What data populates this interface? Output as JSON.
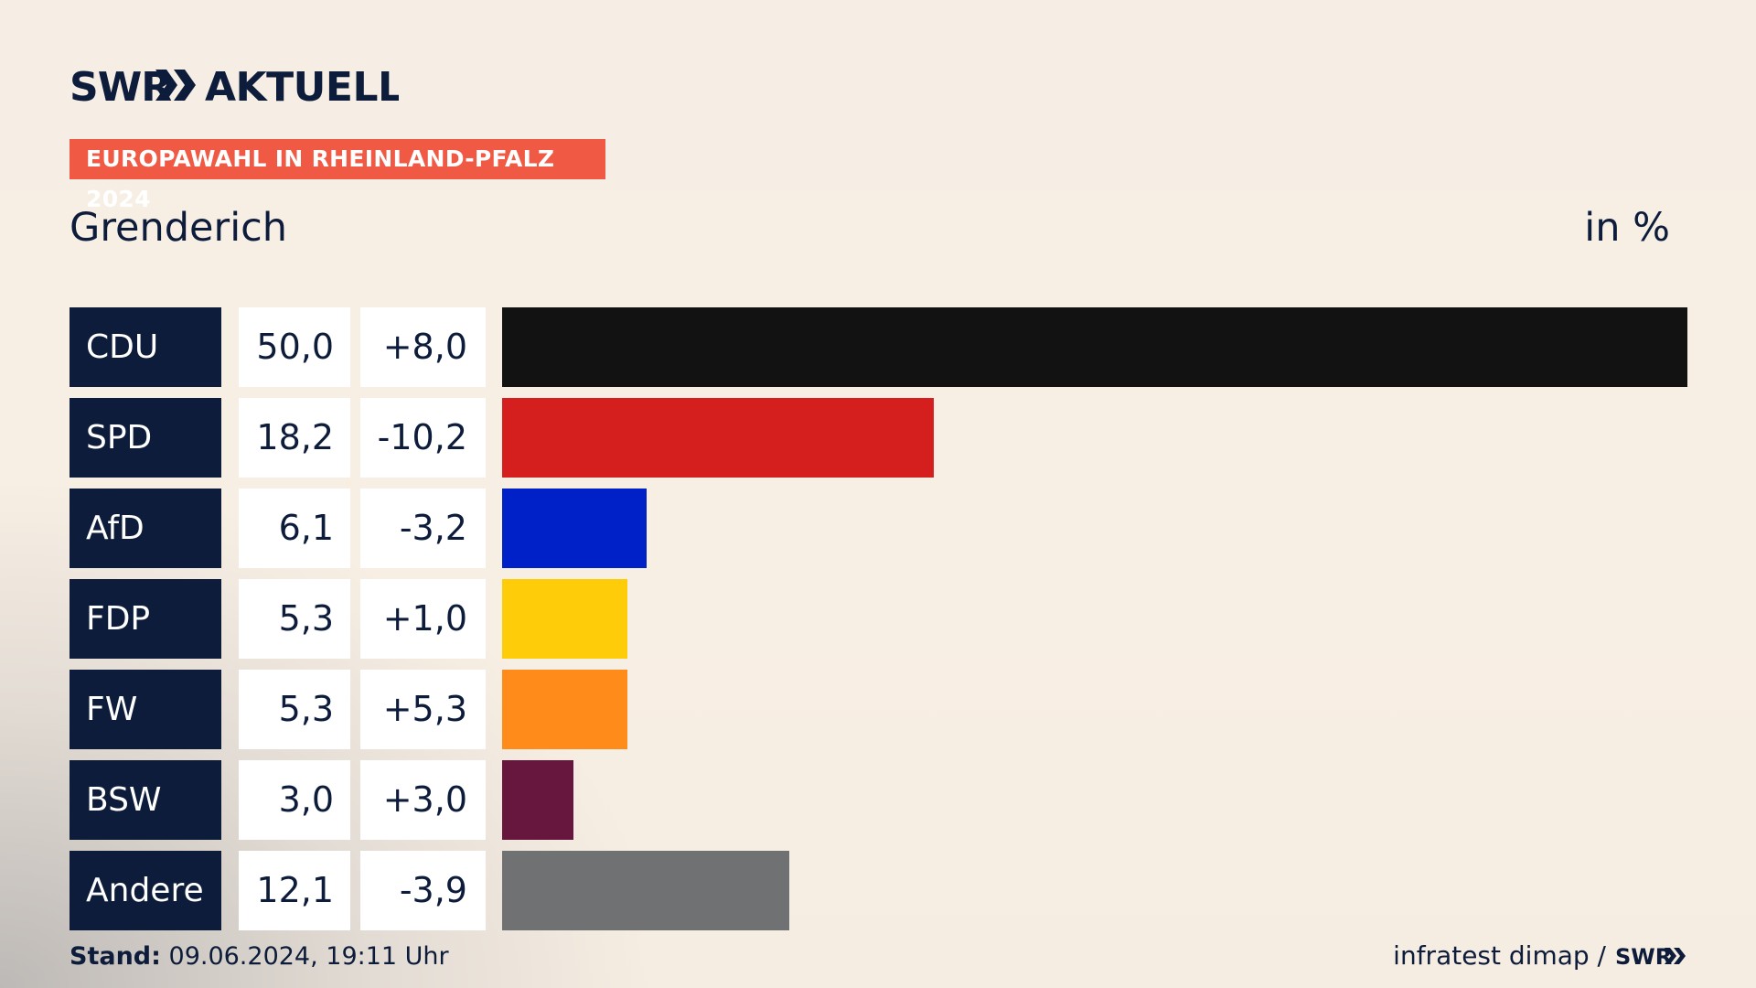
{
  "brand": {
    "logo_text": "SWR",
    "product": "AKTUELL"
  },
  "topic": "EUROPAWAHL IN RHEINLAND-PFALZ 2024",
  "region": "Grenderich",
  "unit_label": "in %",
  "chart_data": {
    "type": "bar",
    "orientation": "horizontal",
    "title": "Europawahl in Rheinland-Pfalz 2024 – Grenderich",
    "unit": "in %",
    "categories": [
      "CDU",
      "SPD",
      "AfD",
      "FDP",
      "FW",
      "BSW",
      "Andere"
    ],
    "values": [
      50.0,
      18.2,
      6.1,
      5.3,
      5.3,
      3.0,
      12.1
    ],
    "value_labels": [
      "50,0",
      "18,2",
      "6,1",
      "5,3",
      "5,3",
      "3,0",
      "12,1"
    ],
    "diff_labels": [
      "+8,0",
      "-10,2",
      "-3,2",
      "+1,0",
      "+5,3",
      "+3,0",
      "-3,9"
    ],
    "diffs": [
      8.0,
      -10.2,
      -3.2,
      1.0,
      5.3,
      3.0,
      -3.9
    ],
    "colors": [
      "#121212",
      "#d51f1f",
      "#0020c8",
      "#ffcc0a",
      "#ff8c1a",
      "#67163e",
      "#707173"
    ],
    "xlim": [
      0,
      50
    ]
  },
  "footer": {
    "stand_label": "Stand:",
    "stand_value": "09.06.2024, 19:11 Uhr",
    "source": "infratest dimap /",
    "source_logo": "SWR"
  }
}
